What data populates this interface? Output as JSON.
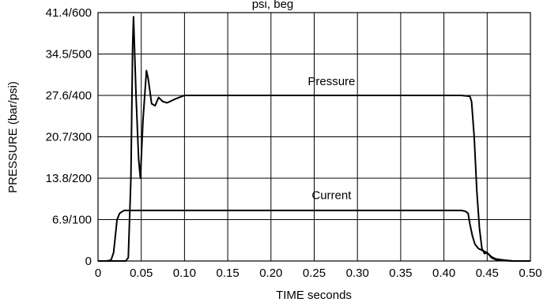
{
  "chart_data": {
    "type": "line",
    "title_fragment": "psi, beg",
    "xlabel": "TIME seconds",
    "ylabel": "PRESSURE (bar/psi)",
    "xlim": [
      0,
      0.5
    ],
    "ylim": [
      0,
      600
    ],
    "grid": true,
    "x_ticks": [
      {
        "v": 0,
        "label": "0"
      },
      {
        "v": 0.05,
        "label": "0.05"
      },
      {
        "v": 0.1,
        "label": "0.10"
      },
      {
        "v": 0.15,
        "label": "0.15"
      },
      {
        "v": 0.2,
        "label": "0.20"
      },
      {
        "v": 0.25,
        "label": "0.25"
      },
      {
        "v": 0.3,
        "label": "0.30"
      },
      {
        "v": 0.35,
        "label": "0.35"
      },
      {
        "v": 0.4,
        "label": "0.40"
      },
      {
        "v": 0.45,
        "label": "0.45"
      },
      {
        "v": 0.5,
        "label": "0.50"
      }
    ],
    "y_ticks": [
      {
        "v": 0,
        "label": "0"
      },
      {
        "v": 100,
        "label": "6.9/100"
      },
      {
        "v": 200,
        "label": "13.8/200"
      },
      {
        "v": 300,
        "label": "20.7/300"
      },
      {
        "v": 400,
        "label": "27.6/400"
      },
      {
        "v": 500,
        "label": "34.5/500"
      },
      {
        "v": 600,
        "label": "41.4/600"
      }
    ],
    "series": [
      {
        "name": "Pressure",
        "label_at": [
          0.27,
          425
        ],
        "x": [
          0,
          0.015,
          0.025,
          0.032,
          0.035,
          0.038,
          0.04,
          0.041,
          0.044,
          0.047,
          0.049,
          0.052,
          0.056,
          0.058,
          0.062,
          0.066,
          0.07,
          0.075,
          0.08,
          0.09,
          0.1,
          0.2,
          0.3,
          0.42,
          0.43,
          0.432,
          0.435,
          0.438,
          0.441,
          0.444,
          0.447,
          0.45,
          0.455,
          0.46,
          0.47,
          0.48,
          0.5
        ],
        "y": [
          0,
          0,
          0,
          0,
          8,
          200,
          520,
          590,
          400,
          245,
          200,
          340,
          460,
          440,
          380,
          375,
          395,
          385,
          382,
          392,
          400,
          400,
          400,
          400,
          398,
          385,
          300,
          170,
          80,
          30,
          18,
          20,
          10,
          5,
          2,
          0,
          0
        ]
      },
      {
        "name": "Current",
        "label_at": [
          0.27,
          150
        ],
        "x": [
          0,
          0.01,
          0.015,
          0.018,
          0.02,
          0.022,
          0.025,
          0.03,
          0.04,
          0.1,
          0.2,
          0.3,
          0.38,
          0.42,
          0.425,
          0.428,
          0.43,
          0.433,
          0.436,
          0.44,
          0.445,
          0.45,
          0.455,
          0.46,
          0.47,
          0.48,
          0.5
        ],
        "y": [
          0,
          0,
          2,
          20,
          60,
          100,
          115,
          122,
          122,
          122,
          122,
          122,
          122,
          122,
          120,
          115,
          90,
          60,
          40,
          30,
          25,
          20,
          8,
          3,
          1,
          0,
          0
        ]
      }
    ]
  }
}
